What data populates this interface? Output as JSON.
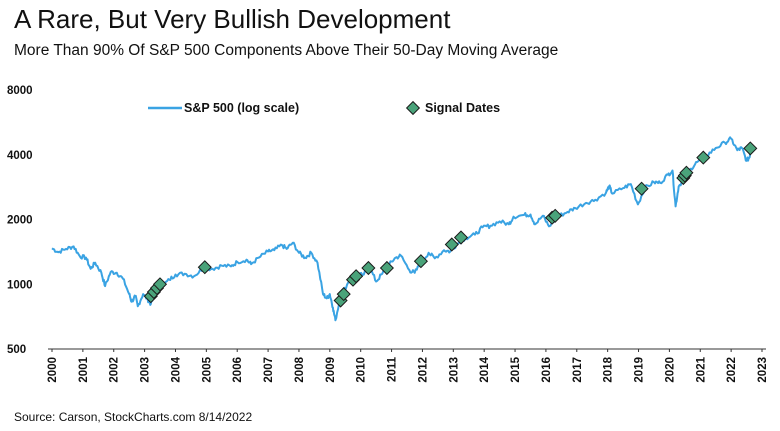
{
  "header": {
    "title": "A Rare, But Very Bullish Development",
    "subtitle": "More Than 90% Of S&P 500 Components Above Their 50-Day Moving Average"
  },
  "footer": {
    "source": "Source: Carson, StockCharts.com 8/14/2022"
  },
  "chart_data": {
    "type": "line",
    "y_scale": "log",
    "ylim": [
      500,
      8000
    ],
    "xlim": [
      2000,
      2023
    ],
    "y_ticks": [
      {
        "value": 500,
        "label": "500"
      },
      {
        "value": 1000,
        "label": "1000"
      },
      {
        "value": 2000,
        "label": "2000"
      },
      {
        "value": 4000,
        "label": "4000"
      },
      {
        "value": 8000,
        "label": "8000"
      }
    ],
    "x_ticks": [
      "2000",
      "2001",
      "2002",
      "2003",
      "2004",
      "2005",
      "2006",
      "2007",
      "2008",
      "2009",
      "2010",
      "2011",
      "2012",
      "2013",
      "2014",
      "2015",
      "2016",
      "2017",
      "2018",
      "2019",
      "2020",
      "2021",
      "2022",
      "2023"
    ],
    "grid": false,
    "legend_position": "top",
    "series": [
      {
        "name": "S&P 500 (log scale)",
        "color": "#3aa3e3",
        "points": [
          [
            2000.0,
            1470
          ],
          [
            2000.2,
            1410
          ],
          [
            2000.45,
            1460
          ],
          [
            2000.7,
            1500
          ],
          [
            2000.9,
            1350
          ],
          [
            2001.1,
            1330
          ],
          [
            2001.25,
            1180
          ],
          [
            2001.4,
            1260
          ],
          [
            2001.6,
            1130
          ],
          [
            2001.72,
            980
          ],
          [
            2001.9,
            1140
          ],
          [
            2002.1,
            1130
          ],
          [
            2002.3,
            1060
          ],
          [
            2002.5,
            900
          ],
          [
            2002.58,
            830
          ],
          [
            2002.7,
            880
          ],
          [
            2002.78,
            790
          ],
          [
            2002.95,
            900
          ],
          [
            2003.1,
            850
          ],
          [
            2003.2,
            810
          ],
          [
            2003.35,
            900
          ],
          [
            2003.6,
            990
          ],
          [
            2003.8,
            1050
          ],
          [
            2004.0,
            1110
          ],
          [
            2004.3,
            1120
          ],
          [
            2004.6,
            1090
          ],
          [
            2004.9,
            1190
          ],
          [
            2005.2,
            1180
          ],
          [
            2005.5,
            1220
          ],
          [
            2005.8,
            1210
          ],
          [
            2006.0,
            1270
          ],
          [
            2006.3,
            1300
          ],
          [
            2006.45,
            1240
          ],
          [
            2006.7,
            1330
          ],
          [
            2007.0,
            1420
          ],
          [
            2007.2,
            1440
          ],
          [
            2007.45,
            1520
          ],
          [
            2007.6,
            1460
          ],
          [
            2007.8,
            1560
          ],
          [
            2008.0,
            1400
          ],
          [
            2008.2,
            1330
          ],
          [
            2008.4,
            1400
          ],
          [
            2008.6,
            1260
          ],
          [
            2008.78,
            900
          ],
          [
            2008.9,
            860
          ],
          [
            2009.0,
            900
          ],
          [
            2009.1,
            780
          ],
          [
            2009.18,
            680
          ],
          [
            2009.35,
            880
          ],
          [
            2009.6,
            1020
          ],
          [
            2009.85,
            1100
          ],
          [
            2010.1,
            1110
          ],
          [
            2010.3,
            1190
          ],
          [
            2010.5,
            1030
          ],
          [
            2010.7,
            1120
          ],
          [
            2010.9,
            1220
          ],
          [
            2011.1,
            1320
          ],
          [
            2011.3,
            1360
          ],
          [
            2011.58,
            1160
          ],
          [
            2011.75,
            1130
          ],
          [
            2011.95,
            1260
          ],
          [
            2012.2,
            1400
          ],
          [
            2012.4,
            1320
          ],
          [
            2012.7,
            1440
          ],
          [
            2012.9,
            1420
          ],
          [
            2013.1,
            1530
          ],
          [
            2013.4,
            1640
          ],
          [
            2013.7,
            1700
          ],
          [
            2013.95,
            1840
          ],
          [
            2014.2,
            1870
          ],
          [
            2014.5,
            1960
          ],
          [
            2014.8,
            1900
          ],
          [
            2014.95,
            2060
          ],
          [
            2015.3,
            2100
          ],
          [
            2015.5,
            2110
          ],
          [
            2015.65,
            1900
          ],
          [
            2015.9,
            2080
          ],
          [
            2016.1,
            1860
          ],
          [
            2016.4,
            2070
          ],
          [
            2016.7,
            2170
          ],
          [
            2016.95,
            2260
          ],
          [
            2017.3,
            2390
          ],
          [
            2017.6,
            2470
          ],
          [
            2017.95,
            2670
          ],
          [
            2018.05,
            2860
          ],
          [
            2018.15,
            2640
          ],
          [
            2018.5,
            2800
          ],
          [
            2018.75,
            2920
          ],
          [
            2018.98,
            2350
          ],
          [
            2019.2,
            2800
          ],
          [
            2019.5,
            2980
          ],
          [
            2019.7,
            2960
          ],
          [
            2019.95,
            3230
          ],
          [
            2020.1,
            3380
          ],
          [
            2020.2,
            2300
          ],
          [
            2020.3,
            2850
          ],
          [
            2020.5,
            3150
          ],
          [
            2020.7,
            3450
          ],
          [
            2020.9,
            3700
          ],
          [
            2021.2,
            3950
          ],
          [
            2021.5,
            4300
          ],
          [
            2021.8,
            4550
          ],
          [
            2022.0,
            4750
          ],
          [
            2022.2,
            4200
          ],
          [
            2022.35,
            4300
          ],
          [
            2022.5,
            3750
          ],
          [
            2022.6,
            3900
          ],
          [
            2022.62,
            4280
          ]
        ]
      },
      {
        "name": "Signal Dates",
        "color": "#4aa37a",
        "points": [
          [
            2003.2,
            880
          ],
          [
            2003.3,
            920
          ],
          [
            2003.4,
            960
          ],
          [
            2003.5,
            1000
          ],
          [
            2004.95,
            1200
          ],
          [
            2009.35,
            840
          ],
          [
            2009.45,
            900
          ],
          [
            2009.75,
            1050
          ],
          [
            2009.85,
            1090
          ],
          [
            2010.25,
            1190
          ],
          [
            2010.85,
            1190
          ],
          [
            2011.95,
            1280
          ],
          [
            2012.95,
            1530
          ],
          [
            2013.25,
            1650
          ],
          [
            2016.2,
            2040
          ],
          [
            2016.3,
            2080
          ],
          [
            2019.1,
            2780
          ],
          [
            2020.45,
            3120
          ],
          [
            2020.5,
            3200
          ],
          [
            2020.55,
            3300
          ],
          [
            2021.1,
            3880
          ],
          [
            2022.62,
            4280
          ]
        ]
      }
    ]
  }
}
